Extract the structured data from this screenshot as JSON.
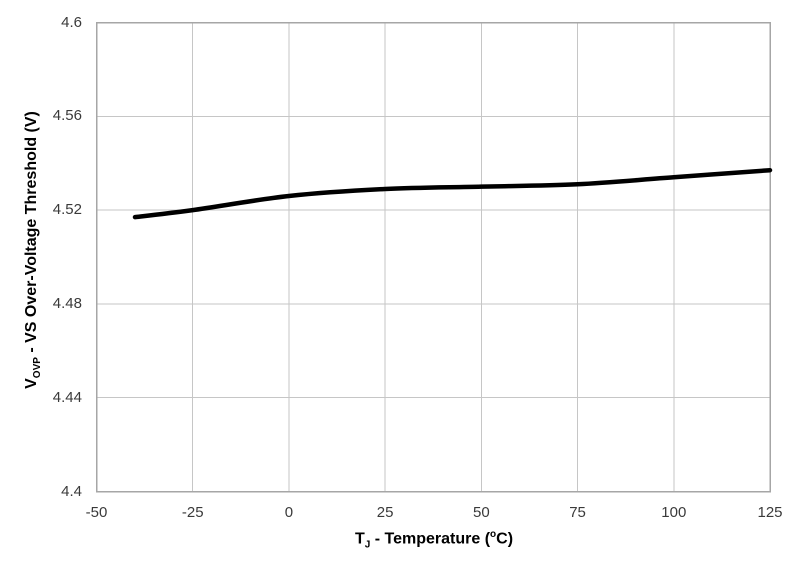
{
  "chart_data": {
    "type": "line",
    "title": "",
    "xlabel": "TJ - Temperature (oC)",
    "ylabel": "VOVP -  VS Over-Voltage Threshold (V)",
    "xlabel_parts": {
      "base": "T",
      "sub": "J",
      "mid": " - Temperature (",
      "sup": "o",
      "end": "C)"
    },
    "ylabel_parts": {
      "base": "V",
      "sub": "OVP",
      "rest": " -  VS Over-Voltage Threshold (V)"
    },
    "x": [
      -40,
      -25,
      0,
      25,
      50,
      75,
      100,
      125
    ],
    "y": [
      4.517,
      4.52,
      4.526,
      4.529,
      4.53,
      4.531,
      4.534,
      4.537
    ],
    "xlim": [
      -50,
      125
    ],
    "ylim": [
      4.4,
      4.6
    ],
    "xtick_labels": [
      "-50",
      "-25",
      "0",
      "25",
      "50",
      "75",
      "100",
      "125"
    ],
    "ytick_labels": [
      "4.6",
      "4.56",
      "4.52",
      "4.48",
      "4.44",
      "4.4"
    ],
    "grid": true,
    "legend": false,
    "colors": {
      "line": "#000000",
      "grid": "#c6c6c6",
      "axis": "#a6a6a6",
      "tick_text": "#3a3a3a",
      "title_text": "#000000",
      "background": "#ffffff"
    }
  }
}
